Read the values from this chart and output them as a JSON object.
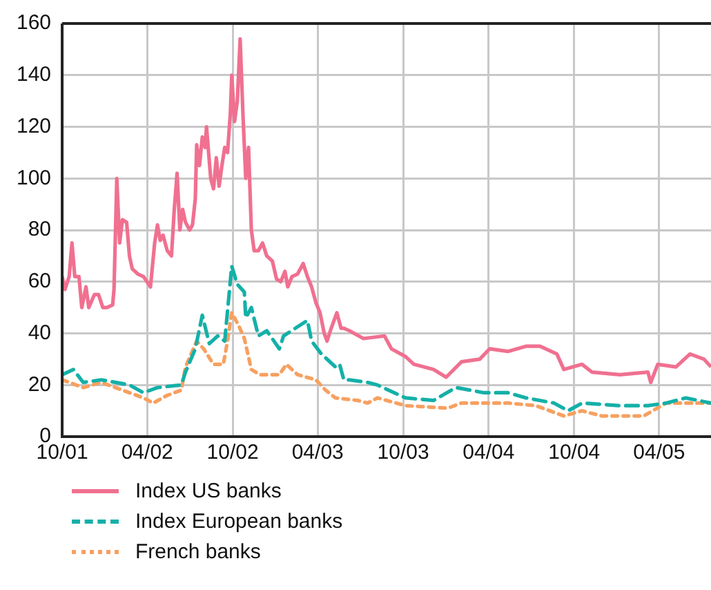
{
  "chart_data": {
    "type": "line",
    "legend": "bottom",
    "grid": true,
    "marker": "none",
    "xlim": [
      "2001-10-01",
      "2005-07-21"
    ],
    "xticks": [
      {
        "value": "2001-10",
        "label": "10/01"
      },
      {
        "value": "2002-04",
        "label": "04/02"
      },
      {
        "value": "2002-10",
        "label": "10/02"
      },
      {
        "value": "2003-04",
        "label": "04/03"
      },
      {
        "value": "2003-10",
        "label": "10/03"
      },
      {
        "value": "2004-04",
        "label": "04/04"
      },
      {
        "value": "2004-10",
        "label": "10/04"
      },
      {
        "value": "2005-04",
        "label": "04/05"
      }
    ],
    "ylim": [
      0,
      160
    ],
    "yticks": [
      0,
      20,
      40,
      60,
      80,
      100,
      120,
      140,
      160
    ],
    "series": [
      {
        "name": "Index US banks",
        "color": "#f07090",
        "line_style": "solid",
        "x": [
          "2001-10-01",
          "2001-10-07",
          "2001-10-16",
          "2001-10-22",
          "2001-10-28",
          "2001-11-06",
          "2001-11-12",
          "2001-11-21",
          "2001-11-27",
          "2001-12-09",
          "2001-12-18",
          "2001-12-27",
          "2002-01-05",
          "2002-01-17",
          "2002-01-20",
          "2002-01-26",
          "2002-02-01",
          "2002-02-07",
          "2002-02-16",
          "2002-02-22",
          "2002-02-28",
          "2002-03-12",
          "2002-03-24",
          "2002-04-08",
          "2002-04-17",
          "2002-04-23",
          "2002-04-29",
          "2002-05-05",
          "2002-05-14",
          "2002-05-23",
          "2002-05-29",
          "2002-06-04",
          "2002-06-10",
          "2002-06-16",
          "2002-06-22",
          "2002-07-01",
          "2002-07-07",
          "2002-07-13",
          "2002-07-16",
          "2002-07-22",
          "2002-07-28",
          "2002-08-03",
          "2002-08-06",
          "2002-08-15",
          "2002-08-21",
          "2002-08-27",
          "2002-09-02",
          "2002-09-08",
          "2002-09-14",
          "2002-09-20",
          "2002-09-26",
          "2002-09-29",
          "2002-10-05",
          "2002-10-11",
          "2002-10-17",
          "2002-10-23",
          "2002-10-29",
          "2002-11-04",
          "2002-11-10",
          "2002-11-16",
          "2002-11-25",
          "2002-12-04",
          "2002-12-13",
          "2002-12-25",
          "2003-01-03",
          "2003-01-12",
          "2003-01-21",
          "2003-01-27",
          "2003-02-05",
          "2003-02-17",
          "2003-03-01",
          "2003-03-10",
          "2003-03-19",
          "2003-03-28",
          "2003-04-06",
          "2003-04-15",
          "2003-04-21",
          "2003-04-30",
          "2003-05-12",
          "2003-05-21",
          "2003-05-27",
          "2003-06-08",
          "2003-07-08",
          "2003-08-22",
          "2003-09-06",
          "2003-10-06",
          "2003-10-24",
          "2003-12-05",
          "2004-01-01",
          "2004-02-03",
          "2004-03-13",
          "2004-04-03",
          "2004-05-12",
          "2004-06-20",
          "2004-07-20",
          "2004-08-25",
          "2004-09-09",
          "2004-10-18",
          "2004-11-08",
          "2005-01-07",
          "2005-03-08",
          "2005-03-14",
          "2005-03-29",
          "2005-05-07",
          "2005-06-06",
          "2005-07-06",
          "2005-07-21"
        ],
        "values": [
          62,
          57,
          62,
          75,
          62,
          62,
          50,
          58,
          50,
          55,
          55,
          50,
          50,
          51,
          57,
          100,
          75,
          84,
          83,
          70,
          65,
          63,
          62,
          58,
          75,
          82,
          76,
          78,
          72,
          70,
          88,
          102,
          80,
          88,
          83,
          80,
          82,
          92,
          113,
          105,
          116,
          112,
          120,
          100,
          96,
          108,
          97,
          105,
          112,
          110,
          125,
          140,
          122,
          130,
          154,
          125,
          100,
          112,
          80,
          72,
          72,
          75,
          70,
          68,
          61,
          60,
          64,
          58,
          62,
          63,
          67,
          62,
          58,
          52,
          48,
          40,
          37,
          42,
          48,
          42,
          42,
          41,
          38,
          39,
          34,
          31,
          28,
          26,
          23,
          29,
          30,
          34,
          33,
          35,
          35,
          32,
          26,
          28,
          25,
          24,
          25,
          21,
          28,
          27,
          32,
          30,
          27
        ]
      },
      {
        "name": "Index European banks",
        "color": "#14b0a8",
        "line_style": "dashed",
        "x": [
          "2001-10-01",
          "2001-10-25",
          "2001-11-15",
          "2001-12-24",
          "2002-02-22",
          "2002-03-24",
          "2002-04-23",
          "2002-06-13",
          "2002-06-22",
          "2002-07-13",
          "2002-07-28",
          "2002-08-12",
          "2002-08-30",
          "2002-09-14",
          "2002-09-29",
          "2002-10-11",
          "2002-10-26",
          "2002-10-29",
          "2002-11-10",
          "2002-11-25",
          "2002-12-13",
          "2003-01-09",
          "2003-01-18",
          "2003-03-10",
          "2003-03-19",
          "2003-04-09",
          "2003-05-09",
          "2003-05-18",
          "2003-05-27",
          "2003-06-08",
          "2003-07-17",
          "2003-08-07",
          "2003-10-06",
          "2003-12-05",
          "2004-01-22",
          "2004-03-22",
          "2004-05-12",
          "2004-06-20",
          "2004-08-19",
          "2004-09-18",
          "2004-10-18",
          "2005-01-07",
          "2005-03-08",
          "2005-04-16",
          "2005-05-28",
          "2005-07-21"
        ],
        "values": [
          24,
          26,
          21,
          22,
          20,
          17,
          19,
          20,
          25,
          34,
          47,
          36,
          39,
          37,
          66,
          59,
          56,
          46,
          50,
          39,
          41,
          34,
          39,
          45,
          37,
          32,
          27,
          28,
          22,
          22,
          21,
          20,
          15,
          14,
          19,
          17,
          17,
          15,
          13,
          10,
          13,
          12,
          12,
          13,
          15,
          13
        ]
      },
      {
        "name": "French banks",
        "color": "#f7a060",
        "line_style": "dotted",
        "x": [
          "2001-10-01",
          "2001-11-15",
          "2001-12-24",
          "2002-02-22",
          "2002-03-24",
          "2002-04-14",
          "2002-05-14",
          "2002-06-13",
          "2002-06-22",
          "2002-07-16",
          "2002-07-31",
          "2002-08-21",
          "2002-09-11",
          "2002-09-20",
          "2002-09-29",
          "2002-10-14",
          "2002-10-26",
          "2002-11-10",
          "2002-11-28",
          "2003-01-09",
          "2003-01-24",
          "2003-02-17",
          "2003-03-28",
          "2003-04-18",
          "2003-05-09",
          "2003-06-26",
          "2003-07-17",
          "2003-08-07",
          "2003-10-06",
          "2004-01-04",
          "2004-02-03",
          "2004-03-22",
          "2004-05-12",
          "2004-07-11",
          "2004-09-09",
          "2004-10-18",
          "2004-11-29",
          "2005-02-27",
          "2005-04-16",
          "2005-05-28",
          "2005-07-21"
        ],
        "values": [
          22,
          19,
          21,
          17,
          15,
          13,
          16,
          18,
          27,
          37,
          34,
          28,
          28,
          37,
          48,
          43,
          38,
          26,
          24,
          24,
          28,
          24,
          22,
          18,
          15,
          14,
          13,
          15,
          12,
          11,
          13,
          13,
          13,
          12,
          8,
          10,
          8,
          8,
          13,
          13,
          13
        ]
      }
    ]
  }
}
